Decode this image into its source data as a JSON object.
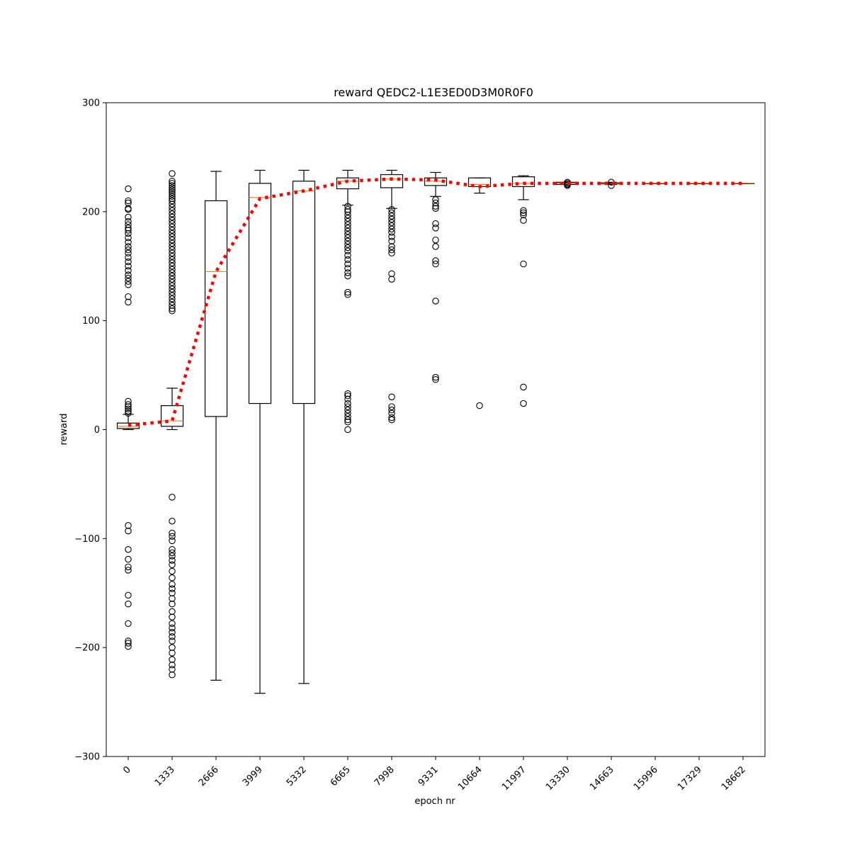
{
  "chart_data": {
    "type": "box",
    "title": "reward QEDC2-L1E3ED0D3M0R0F0",
    "xlabel": "epoch nr",
    "ylabel": "reward",
    "ylim": [
      -300,
      300
    ],
    "yticks": [
      -300,
      -200,
      -100,
      0,
      100,
      200,
      300
    ],
    "ytick_labels": [
      "−300",
      "−200",
      "−100",
      "0",
      "100",
      "200",
      "300"
    ],
    "categories": [
      "0",
      "1333",
      "2666",
      "3999",
      "5332",
      "6665",
      "7998",
      "9331",
      "10664",
      "11997",
      "13330",
      "14663",
      "15996",
      "17329",
      "18662"
    ],
    "grid": false,
    "colors": {
      "box": "#000000",
      "median": "#ff7f0e",
      "mean_line": "#ff0000"
    },
    "boxes": [
      {
        "q1": 1,
        "median": 3,
        "q3": 6,
        "whisker_low": 0,
        "whisker_high": 14,
        "outliers": [
          221,
          210,
          208,
          203,
          202,
          195,
          191,
          188,
          185,
          183,
          180,
          176,
          172,
          168,
          165,
          162,
          158,
          154,
          150,
          146,
          142,
          139,
          136,
          133,
          122,
          117,
          26,
          23,
          21,
          19,
          17,
          15,
          -88,
          -93,
          -110,
          -119,
          -126,
          -129,
          -152,
          -160,
          -178,
          -194,
          -196,
          -199
        ]
      },
      {
        "q1": 3,
        "median": 8,
        "q3": 22,
        "whisker_low": 0,
        "whisker_high": 38,
        "outliers": [
          235,
          228,
          226,
          224,
          222,
          220,
          218,
          216,
          214,
          212,
          210,
          207,
          204,
          201,
          198,
          195,
          192,
          189,
          186,
          183,
          180,
          177,
          174,
          171,
          168,
          165,
          162,
          159,
          156,
          153,
          150,
          147,
          144,
          141,
          138,
          135,
          132,
          129,
          126,
          123,
          120,
          117,
          114,
          111,
          109,
          -62,
          -84,
          -95,
          -98,
          -102,
          -110,
          -113,
          -116,
          -120,
          -124,
          -130,
          -136,
          -142,
          -146,
          -150,
          -155,
          -160,
          -167,
          -172,
          -178,
          -182,
          -186,
          -190,
          -194,
          -200,
          -205,
          -211,
          -216,
          -220,
          -225
        ]
      },
      {
        "q1": 12,
        "median": 145,
        "q3": 210,
        "whisker_low": -230,
        "whisker_high": 237,
        "outliers": []
      },
      {
        "q1": 24,
        "median": 213,
        "q3": 226,
        "whisker_low": -242,
        "whisker_high": 238,
        "outliers": []
      },
      {
        "q1": 24,
        "median": 219,
        "q3": 228,
        "whisker_low": -233,
        "whisker_high": 238,
        "outliers": []
      },
      {
        "q1": 221,
        "median": 228,
        "q3": 231,
        "whisker_low": 206,
        "whisker_high": 238,
        "outliers": [
          205,
          202,
          200,
          197,
          194,
          191,
          188,
          185,
          182,
          179,
          176,
          173,
          170,
          167,
          164,
          160,
          156,
          152,
          148,
          144,
          141,
          126,
          124,
          33,
          31,
          28,
          24,
          21,
          18,
          15,
          12,
          9,
          7,
          0
        ]
      },
      {
        "q1": 222,
        "median": 230,
        "q3": 234,
        "whisker_low": 203,
        "whisker_high": 238,
        "outliers": [
          202,
          199,
          196,
          193,
          190,
          187,
          184,
          181,
          177,
          173,
          168,
          165,
          162,
          143,
          138,
          30,
          21,
          18,
          15,
          11,
          9
        ]
      },
      {
        "q1": 224,
        "median": 228,
        "q3": 231,
        "whisker_low": 214,
        "whisker_high": 236,
        "outliers": [
          211,
          208,
          205,
          203,
          189,
          185,
          174,
          168,
          155,
          152,
          118,
          48,
          46
        ]
      },
      {
        "q1": 223,
        "median": 225,
        "q3": 231,
        "whisker_low": 217,
        "whisker_high": 231,
        "outliers": [
          22
        ]
      },
      {
        "q1": 223,
        "median": 226,
        "q3": 232,
        "whisker_low": 211,
        "whisker_high": 233,
        "outliers": [
          201,
          199,
          197,
          192,
          152,
          39,
          24
        ]
      },
      {
        "q1": 225,
        "median": 226,
        "q3": 227,
        "whisker_low": 225,
        "whisker_high": 227,
        "outliers": [
          224,
          225,
          227,
          226
        ]
      },
      {
        "q1": 225.5,
        "median": 226,
        "q3": 226.5,
        "whisker_low": 225,
        "whisker_high": 227,
        "outliers": [
          224,
          227
        ]
      },
      {
        "q1": 226,
        "median": 226,
        "q3": 226,
        "whisker_low": 226,
        "whisker_high": 226,
        "outliers": []
      },
      {
        "q1": 226,
        "median": 226,
        "q3": 226,
        "whisker_low": 226,
        "whisker_high": 226,
        "outliers": []
      },
      {
        "q1": 226,
        "median": 226,
        "q3": 226,
        "whisker_low": 226,
        "whisker_high": 226,
        "outliers": []
      }
    ],
    "mean_series": {
      "style": "dotted",
      "values": [
        4,
        8,
        145,
        212,
        219,
        228,
        230,
        229,
        223,
        226,
        226,
        226,
        226,
        226,
        226
      ]
    }
  }
}
